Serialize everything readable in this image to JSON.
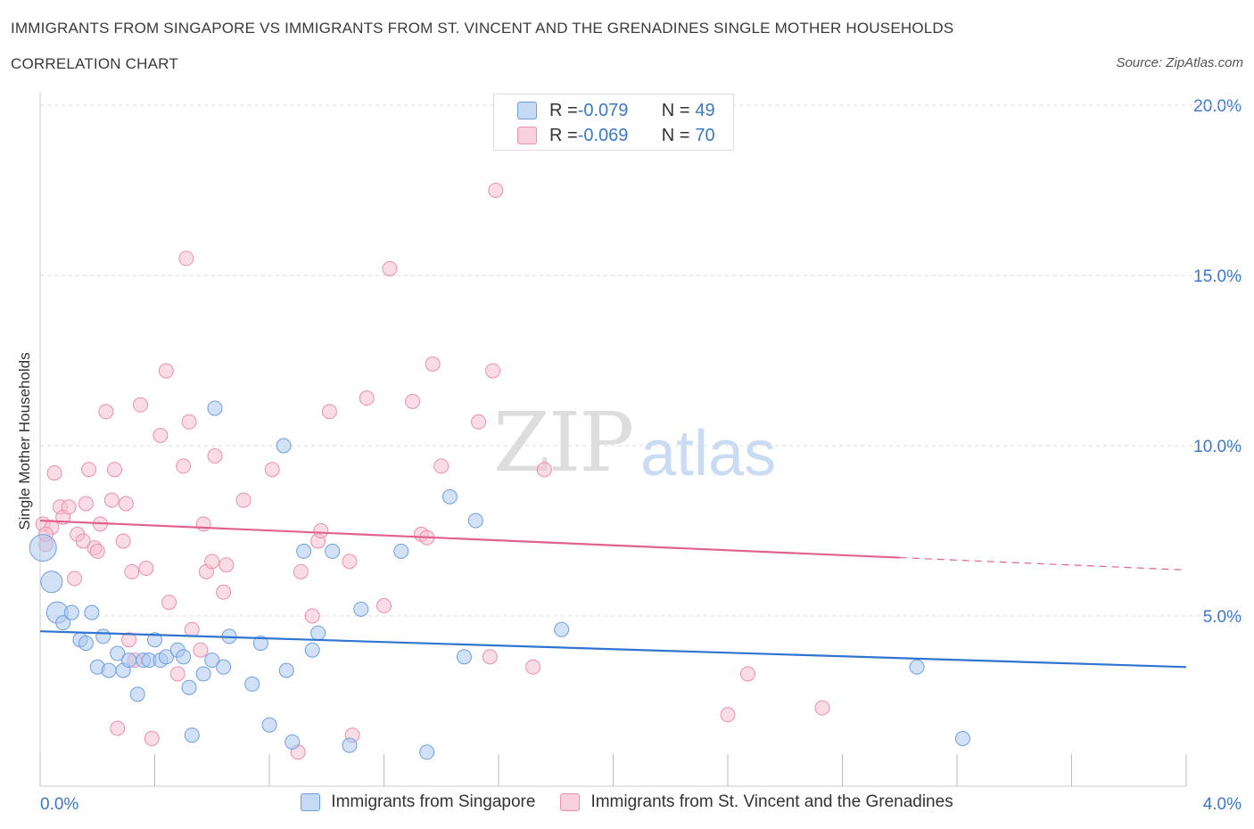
{
  "title": "IMMIGRANTS FROM SINGAPORE VS IMMIGRANTS FROM ST. VINCENT AND THE GRENADINES SINGLE MOTHER HOUSEHOLDS",
  "subtitle": "CORRELATION CHART",
  "source": "Source: ZipAtlas.com",
  "watermark": {
    "zip": "ZIP",
    "atlas": "atlas"
  },
  "legend": {
    "rows": [
      {
        "r_label": "R = ",
        "r_value": "-0.079",
        "n_label": "N = ",
        "n_value": "49"
      },
      {
        "r_label": "R = ",
        "r_value": "-0.069",
        "n_label": "N = ",
        "n_value": "70"
      }
    ]
  },
  "bottom_legend": [
    {
      "label": "Immigrants from Singapore"
    },
    {
      "label": "Immigrants from St. Vincent and the Grenadines"
    }
  ],
  "colors": {
    "blue_fill": "#aec9ef",
    "blue_stroke": "#6d9ee0",
    "blue_line": "#2f74d0",
    "pink_fill": "#f6bfd0",
    "pink_stroke": "#ea8fae",
    "pink_line": "#e0628d",
    "tick_label": "#3b78c8",
    "grid": "#dedede"
  },
  "chart_data": {
    "type": "scatter",
    "title": "IMMIGRANTS FROM SINGAPORE VS IMMIGRANTS FROM ST. VINCENT AND THE GRENADINES SINGLE MOTHER HOUSEHOLDS",
    "xlabel": "",
    "ylabel": "Single Mother Households",
    "xlim": [
      0,
      4.0
    ],
    "ylim": [
      0,
      20.0
    ],
    "x_tick_labels": [
      "0.0%",
      "4.0%"
    ],
    "y_ticks": [
      5,
      10,
      15,
      20
    ],
    "y_tick_labels": [
      "5.0%",
      "10.0%",
      "15.0%",
      "20.0%"
    ],
    "grid": true,
    "legend_position": "top-center",
    "series": [
      {
        "name": "Immigrants from Singapore",
        "R": -0.079,
        "N": 49,
        "trend": {
          "x0": 0.0,
          "y0": 4.55,
          "x1": 4.0,
          "y1": 3.5,
          "dashed_from": null
        },
        "points": [
          [
            0.01,
            7.0,
            3
          ],
          [
            0.04,
            6.0,
            2
          ],
          [
            0.06,
            5.1,
            2
          ],
          [
            0.08,
            4.8,
            1
          ],
          [
            0.11,
            5.1,
            1
          ],
          [
            0.14,
            4.3,
            1
          ],
          [
            0.16,
            4.2,
            1
          ],
          [
            0.18,
            5.1,
            1
          ],
          [
            0.2,
            3.5,
            1
          ],
          [
            0.22,
            4.4,
            1
          ],
          [
            0.24,
            3.4,
            1
          ],
          [
            0.27,
            3.9,
            1
          ],
          [
            0.29,
            3.4,
            1
          ],
          [
            0.31,
            3.7,
            1
          ],
          [
            0.34,
            2.7,
            1
          ],
          [
            0.36,
            3.7,
            1
          ],
          [
            0.38,
            3.7,
            1
          ],
          [
            0.4,
            4.3,
            1
          ],
          [
            0.42,
            3.7,
            1
          ],
          [
            0.44,
            3.8,
            1
          ],
          [
            0.48,
            4.0,
            1
          ],
          [
            0.5,
            3.8,
            1
          ],
          [
            0.52,
            2.9,
            1
          ],
          [
            0.53,
            1.5,
            1
          ],
          [
            0.57,
            3.3,
            1
          ],
          [
            0.6,
            3.7,
            1
          ],
          [
            0.61,
            11.1,
            1
          ],
          [
            0.64,
            3.5,
            1
          ],
          [
            0.66,
            4.4,
            1
          ],
          [
            0.74,
            3.0,
            1
          ],
          [
            0.77,
            4.2,
            1
          ],
          [
            0.8,
            1.8,
            1
          ],
          [
            0.85,
            10.0,
            1
          ],
          [
            0.86,
            3.4,
            1
          ],
          [
            0.88,
            1.3,
            1
          ],
          [
            0.92,
            6.9,
            1
          ],
          [
            0.95,
            4.0,
            1
          ],
          [
            0.97,
            4.5,
            1
          ],
          [
            1.02,
            6.9,
            1
          ],
          [
            1.08,
            1.2,
            1
          ],
          [
            1.12,
            5.2,
            1
          ],
          [
            1.26,
            6.9,
            1
          ],
          [
            1.35,
            1.0,
            1
          ],
          [
            1.43,
            8.5,
            1
          ],
          [
            1.48,
            3.8,
            1
          ],
          [
            1.52,
            7.8,
            1
          ],
          [
            1.82,
            4.6,
            1
          ],
          [
            3.06,
            3.5,
            1
          ],
          [
            3.22,
            1.4,
            1
          ]
        ]
      },
      {
        "name": "Immigrants from St. Vincent and the Grenadines",
        "R": -0.069,
        "N": 70,
        "trend": {
          "x0": 0.0,
          "y0": 7.8,
          "x1": 4.0,
          "y1": 6.35,
          "dashed_from": 3.0
        },
        "points": [
          [
            0.01,
            7.7,
            1
          ],
          [
            0.02,
            7.1,
            1
          ],
          [
            0.04,
            7.6,
            1
          ],
          [
            0.05,
            9.2,
            1
          ],
          [
            0.07,
            8.2,
            1
          ],
          [
            0.08,
            7.9,
            1
          ],
          [
            0.1,
            8.2,
            1
          ],
          [
            0.12,
            6.1,
            1
          ],
          [
            0.13,
            7.4,
            1
          ],
          [
            0.15,
            7.2,
            1
          ],
          [
            0.16,
            8.3,
            1
          ],
          [
            0.17,
            9.3,
            1
          ],
          [
            0.19,
            7.0,
            1
          ],
          [
            0.2,
            6.9,
            1
          ],
          [
            0.21,
            7.7,
            1
          ],
          [
            0.23,
            11.0,
            1
          ],
          [
            0.25,
            8.4,
            1
          ],
          [
            0.26,
            9.3,
            1
          ],
          [
            0.27,
            1.7,
            1
          ],
          [
            0.29,
            7.2,
            1
          ],
          [
            0.3,
            8.3,
            1
          ],
          [
            0.31,
            4.3,
            1
          ],
          [
            0.32,
            6.3,
            1
          ],
          [
            0.33,
            3.7,
            1
          ],
          [
            0.35,
            11.2,
            1
          ],
          [
            0.37,
            6.4,
            1
          ],
          [
            0.39,
            1.4,
            1
          ],
          [
            0.42,
            10.3,
            1
          ],
          [
            0.44,
            12.2,
            1
          ],
          [
            0.45,
            5.4,
            1
          ],
          [
            0.48,
            3.3,
            1
          ],
          [
            0.5,
            9.4,
            1
          ],
          [
            0.51,
            15.5,
            1
          ],
          [
            0.52,
            10.7,
            1
          ],
          [
            0.53,
            4.6,
            1
          ],
          [
            0.56,
            4.0,
            1
          ],
          [
            0.57,
            7.7,
            1
          ],
          [
            0.58,
            6.3,
            1
          ],
          [
            0.6,
            6.6,
            1
          ],
          [
            0.61,
            9.7,
            1
          ],
          [
            0.64,
            5.7,
            1
          ],
          [
            0.65,
            6.5,
            1
          ],
          [
            0.71,
            8.4,
            1
          ],
          [
            0.81,
            9.3,
            1
          ],
          [
            0.9,
            1.0,
            1
          ],
          [
            0.91,
            6.3,
            1
          ],
          [
            0.95,
            5.0,
            1
          ],
          [
            0.97,
            7.2,
            1
          ],
          [
            0.98,
            7.5,
            1
          ],
          [
            1.01,
            11.0,
            1
          ],
          [
            1.08,
            6.6,
            1
          ],
          [
            1.09,
            1.5,
            1
          ],
          [
            1.14,
            11.4,
            1
          ],
          [
            1.2,
            5.3,
            1
          ],
          [
            1.22,
            15.2,
            1
          ],
          [
            1.3,
            11.3,
            1
          ],
          [
            1.33,
            7.4,
            1
          ],
          [
            1.35,
            7.3,
            1
          ],
          [
            1.37,
            12.4,
            1
          ],
          [
            1.4,
            9.4,
            1
          ],
          [
            1.53,
            10.7,
            1
          ],
          [
            1.57,
            3.8,
            1
          ],
          [
            1.58,
            12.2,
            1
          ],
          [
            1.59,
            17.5,
            1
          ],
          [
            1.72,
            3.5,
            1
          ],
          [
            1.76,
            9.3,
            1
          ],
          [
            2.4,
            2.1,
            1
          ],
          [
            2.47,
            3.3,
            1
          ],
          [
            2.73,
            2.3,
            1
          ],
          [
            0.02,
            7.4,
            1
          ]
        ]
      }
    ]
  }
}
